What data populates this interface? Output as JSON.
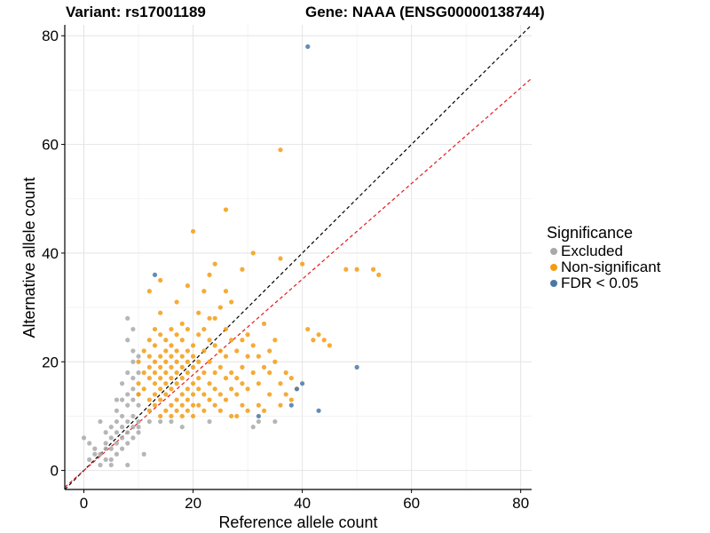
{
  "titles": {
    "variant": "Variant: rs17001189",
    "gene": "Gene: NAAA (ENSG00000138744)"
  },
  "legend": {
    "title": "Significance",
    "items": [
      {
        "label": "Excluded",
        "color": "#a9a9a9"
      },
      {
        "label": "Non-significant",
        "color": "#f39c12"
      },
      {
        "label": "FDR < 0.05",
        "color": "#4a78a6"
      }
    ]
  },
  "chart_data": {
    "type": "scatter",
    "title": "Variant: rs17001189    Gene: NAAA (ENSG00000138744)",
    "xlabel": "Reference allele count",
    "ylabel": "Alternative allele count",
    "xlim": [
      -3.5,
      82
    ],
    "ylim": [
      -3.5,
      82
    ],
    "xticks": [
      0,
      20,
      40,
      60,
      80
    ],
    "yticks": [
      0,
      20,
      40,
      60,
      80
    ],
    "grid": true,
    "legend_position": "right",
    "reference_lines": [
      {
        "kind": "identity",
        "slope": 1,
        "intercept": 0,
        "color": "#000000",
        "style": "dashed"
      },
      {
        "kind": "fit",
        "slope": 0.88,
        "intercept": 0,
        "color": "#e41a1c",
        "style": "dashed"
      }
    ],
    "series": [
      {
        "name": "Excluded",
        "color": "#a9a9a9",
        "points": [
          [
            0,
            6
          ],
          [
            1,
            5
          ],
          [
            1,
            2
          ],
          [
            2,
            4
          ],
          [
            2,
            3
          ],
          [
            3,
            9
          ],
          [
            3,
            3
          ],
          [
            3,
            1
          ],
          [
            4,
            7
          ],
          [
            4,
            5
          ],
          [
            4,
            4
          ],
          [
            4,
            2
          ],
          [
            5,
            6
          ],
          [
            5,
            4
          ],
          [
            5,
            2
          ],
          [
            5,
            1
          ],
          [
            5,
            8
          ],
          [
            6,
            7
          ],
          [
            6,
            9
          ],
          [
            6,
            5
          ],
          [
            6,
            3
          ],
          [
            6,
            11
          ],
          [
            6,
            13
          ],
          [
            7,
            10
          ],
          [
            7,
            8
          ],
          [
            7,
            6
          ],
          [
            7,
            4
          ],
          [
            7,
            13
          ],
          [
            7,
            16
          ],
          [
            8,
            12
          ],
          [
            8,
            9
          ],
          [
            8,
            7
          ],
          [
            8,
            5
          ],
          [
            8,
            14
          ],
          [
            8,
            18
          ],
          [
            8,
            1
          ],
          [
            8,
            28
          ],
          [
            8,
            24
          ],
          [
            9,
            10
          ],
          [
            9,
            8
          ],
          [
            9,
            6
          ],
          [
            9,
            13
          ],
          [
            9,
            15
          ],
          [
            9,
            17
          ],
          [
            9,
            20
          ],
          [
            9,
            22
          ],
          [
            9,
            26
          ],
          [
            10,
            7
          ],
          [
            10,
            9
          ],
          [
            10,
            12
          ],
          [
            10,
            14
          ],
          [
            10,
            18
          ],
          [
            10,
            21
          ],
          [
            10,
            8
          ],
          [
            11,
            3
          ],
          [
            12,
            9
          ],
          [
            14,
            9
          ],
          [
            16,
            9
          ],
          [
            18,
            8
          ],
          [
            23,
            9
          ],
          [
            31,
            8
          ],
          [
            32,
            9
          ],
          [
            35,
            9
          ]
        ]
      },
      {
        "name": "Non-significant",
        "color": "#f39c12",
        "points": [
          [
            10,
            14
          ],
          [
            10,
            16
          ],
          [
            10,
            20
          ],
          [
            11,
            15
          ],
          [
            11,
            18
          ],
          [
            11,
            22
          ],
          [
            12,
            11
          ],
          [
            12,
            13
          ],
          [
            12,
            17
          ],
          [
            12,
            19
          ],
          [
            12,
            21
          ],
          [
            12,
            24
          ],
          [
            12,
            33
          ],
          [
            13,
            12
          ],
          [
            13,
            14
          ],
          [
            13,
            16
          ],
          [
            13,
            18
          ],
          [
            13,
            20
          ],
          [
            13,
            23
          ],
          [
            13,
            26
          ],
          [
            14,
            10
          ],
          [
            14,
            13
          ],
          [
            14,
            15
          ],
          [
            14,
            17
          ],
          [
            14,
            19
          ],
          [
            14,
            21
          ],
          [
            14,
            25
          ],
          [
            14,
            29
          ],
          [
            14,
            35
          ],
          [
            15,
            11
          ],
          [
            15,
            14
          ],
          [
            15,
            16
          ],
          [
            15,
            18
          ],
          [
            15,
            20
          ],
          [
            15,
            22
          ],
          [
            15,
            24
          ],
          [
            16,
            10
          ],
          [
            16,
            12
          ],
          [
            16,
            15
          ],
          [
            16,
            17
          ],
          [
            16,
            19
          ],
          [
            16,
            21
          ],
          [
            16,
            23
          ],
          [
            16,
            26
          ],
          [
            17,
            11
          ],
          [
            17,
            13
          ],
          [
            17,
            16
          ],
          [
            17,
            18
          ],
          [
            17,
            20
          ],
          [
            17,
            22
          ],
          [
            17,
            25
          ],
          [
            17,
            31
          ],
          [
            18,
            10
          ],
          [
            18,
            12
          ],
          [
            18,
            14
          ],
          [
            18,
            17
          ],
          [
            18,
            19
          ],
          [
            18,
            21
          ],
          [
            18,
            24
          ],
          [
            18,
            27
          ],
          [
            19,
            11
          ],
          [
            19,
            13
          ],
          [
            19,
            15
          ],
          [
            19,
            18
          ],
          [
            19,
            20
          ],
          [
            19,
            22
          ],
          [
            19,
            26
          ],
          [
            19,
            34
          ],
          [
            20,
            10
          ],
          [
            20,
            12
          ],
          [
            20,
            14
          ],
          [
            20,
            16
          ],
          [
            20,
            19
          ],
          [
            20,
            21
          ],
          [
            20,
            23
          ],
          [
            20,
            44
          ],
          [
            21,
            12
          ],
          [
            21,
            15
          ],
          [
            21,
            17
          ],
          [
            21,
            20
          ],
          [
            21,
            25
          ],
          [
            21,
            29
          ],
          [
            22,
            11
          ],
          [
            22,
            14
          ],
          [
            22,
            18
          ],
          [
            22,
            22
          ],
          [
            22,
            26
          ],
          [
            22,
            33
          ],
          [
            23,
            13
          ],
          [
            23,
            16
          ],
          [
            23,
            20
          ],
          [
            23,
            24
          ],
          [
            23,
            28
          ],
          [
            23,
            36
          ],
          [
            24,
            12
          ],
          [
            24,
            15
          ],
          [
            24,
            18
          ],
          [
            24,
            23
          ],
          [
            24,
            28
          ],
          [
            24,
            38
          ],
          [
            25,
            11
          ],
          [
            25,
            14
          ],
          [
            25,
            19
          ],
          [
            25,
            22
          ],
          [
            25,
            30
          ],
          [
            26,
            13
          ],
          [
            26,
            17
          ],
          [
            26,
            21
          ],
          [
            26,
            26
          ],
          [
            26,
            33
          ],
          [
            26,
            48
          ],
          [
            27,
            10
          ],
          [
            27,
            15
          ],
          [
            27,
            18
          ],
          [
            27,
            24
          ],
          [
            27,
            31
          ],
          [
            28,
            10
          ],
          [
            28,
            14
          ],
          [
            28,
            17
          ],
          [
            28,
            22
          ],
          [
            29,
            12
          ],
          [
            29,
            16
          ],
          [
            29,
            19
          ],
          [
            29,
            24
          ],
          [
            29,
            37
          ],
          [
            30,
            11
          ],
          [
            30,
            15
          ],
          [
            30,
            21
          ],
          [
            30,
            25
          ],
          [
            31,
            18
          ],
          [
            31,
            23
          ],
          [
            31,
            40
          ],
          [
            32,
            12
          ],
          [
            32,
            16
          ],
          [
            32,
            21
          ],
          [
            33,
            11
          ],
          [
            33,
            19
          ],
          [
            33,
            27
          ],
          [
            34,
            14
          ],
          [
            34,
            18
          ],
          [
            34,
            22
          ],
          [
            35,
            20
          ],
          [
            35,
            24
          ],
          [
            36,
            12
          ],
          [
            36,
            16
          ],
          [
            36,
            39
          ],
          [
            36,
            59
          ],
          [
            37,
            14
          ],
          [
            37,
            18
          ],
          [
            38,
            13
          ],
          [
            38,
            17
          ],
          [
            39,
            15
          ],
          [
            40,
            38
          ],
          [
            41,
            26
          ],
          [
            42,
            24
          ],
          [
            43,
            25
          ],
          [
            44,
            24
          ],
          [
            45,
            23
          ],
          [
            48,
            37
          ],
          [
            50,
            37
          ],
          [
            53,
            37
          ],
          [
            54,
            36
          ]
        ]
      },
      {
        "name": "FDR < 0.05",
        "color": "#4a78a6",
        "points": [
          [
            13,
            36
          ],
          [
            32,
            10
          ],
          [
            38,
            12
          ],
          [
            39,
            15
          ],
          [
            40,
            16
          ],
          [
            41,
            78
          ],
          [
            43,
            11
          ],
          [
            50,
            19
          ]
        ]
      }
    ]
  }
}
